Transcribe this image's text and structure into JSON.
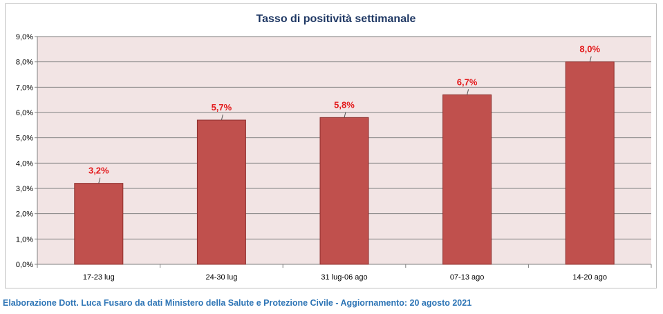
{
  "chart_data": {
    "type": "bar",
    "title": "Tasso di positività settimanale",
    "categories": [
      "17-23 lug",
      "24-30 lug",
      "31 lug-06 ago",
      "07-13 ago",
      "14-20 ago"
    ],
    "values": [
      3.2,
      5.7,
      5.8,
      6.7,
      8.0
    ],
    "data_labels": [
      "3,2%",
      "5,7%",
      "5,8%",
      "6,7%",
      "8,0%"
    ],
    "y_ticks": [
      "0,0%",
      "1,0%",
      "2,0%",
      "3,0%",
      "4,0%",
      "5,0%",
      "6,0%",
      "7,0%",
      "8,0%",
      "9,0%"
    ],
    "ylim": [
      0,
      9
    ],
    "xlabel": "",
    "ylabel": "",
    "grid": true,
    "legend": "none",
    "colors": {
      "bar": "#c0504d",
      "bar_border": "#8c2d2b",
      "plot_background": "#f2e4e4",
      "gridline": "#7f7f7f",
      "data_label": "#e31a1c",
      "title": "#1f3864"
    }
  },
  "footer": {
    "source_note": "Elaborazione Dott. Luca Fusaro da dati Ministero della Salute e Protezione Civile - Aggiornamento: 20 agosto 2021"
  }
}
